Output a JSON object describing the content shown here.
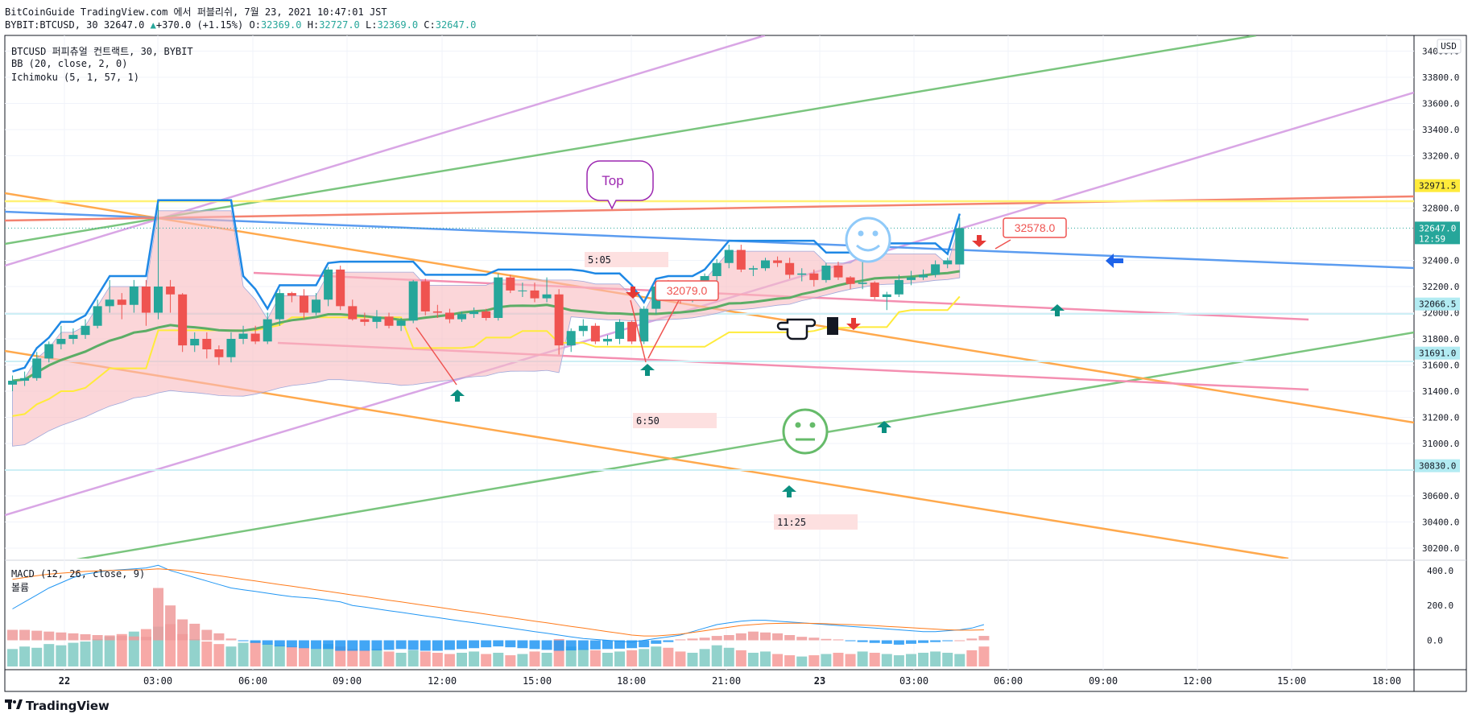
{
  "header": {
    "publish_line": "BitCoinGuide TradingView.com 에서 퍼블리쉬, 7월 23, 2021 10:47:01 JST",
    "symbol_line": {
      "symbol": "BYBIT:BTCUSD, 30",
      "last": "32647.0",
      "change": "+370.0 (+1.15%)",
      "o_label": "O:",
      "o": "32369.0",
      "h_label": "H:",
      "h": "32727.0",
      "l_label": "L:",
      "l": "32369.0",
      "c_label": "C:",
      "c": "32647.0"
    }
  },
  "legend": {
    "title": "BTCUSD 퍼피츄얼 컨트랙트, 30, BYBIT",
    "bb": "BB (20, close, 2, 0)",
    "ichimoku": "Ichimoku (5, 1, 57, 1)",
    "macd": "MACD (12, 26, close, 9)",
    "volume": "볼륨"
  },
  "colors": {
    "up": "#26a69a",
    "down": "#ef5350",
    "bb_basis": "#5cad66",
    "bb_band": "#1e88e5",
    "kijun": "#ffeb3b",
    "cloud": "#f8bbbf",
    "macd": "#2196f3",
    "signal": "#ff7a1a"
  },
  "footer": {
    "brand": "TradingView",
    "logo_icon": "tradingview-logo-icon"
  },
  "chart_data": [
    {
      "type": "candlestick",
      "currency": "USD",
      "price_axis_ticks": [
        34000,
        33800,
        33600,
        33400,
        33200,
        32800,
        32400,
        32200,
        32000,
        31800,
        31600,
        31400,
        31200,
        31000,
        30600,
        30400,
        30200
      ],
      "price_axis_labels": [
        "34000.0",
        "33800.0",
        "33600.0",
        "33400.0",
        "33200.0",
        "32800.0",
        "32400.0",
        "32200.0",
        "32000.0",
        "31800.0",
        "31600.0",
        "31400.0",
        "31200.0",
        "31000.0",
        "30600.0",
        "30400.0",
        "30200.0"
      ],
      "time_axis_labels": [
        "22",
        "03:00",
        "06:00",
        "09:00",
        "12:00",
        "15:00",
        "18:00",
        "21:00",
        "23",
        "03:00",
        "06:00",
        "09:00",
        "12:00",
        "15:00",
        "18:00"
      ],
      "ylim": [
        30120,
        34120
      ],
      "price_markers": [
        {
          "value": 32971.5,
          "label": "32971.5",
          "color": "#ffeb3b",
          "text_color": "#131722"
        },
        {
          "value": 32647.0,
          "label": "32647.0",
          "sub": "12:59",
          "color": "#26a69a",
          "text_color": "#ffffff"
        },
        {
          "value": 32066.5,
          "label": "32066.5",
          "color": "#b2ebf2",
          "text_color": "#131722"
        },
        {
          "value": 31691.0,
          "label": "31691.0",
          "color": "#b2ebf2",
          "text_color": "#131722"
        },
        {
          "value": 30830.0,
          "label": "30830.0",
          "color": "#b2ebf2",
          "text_color": "#131722"
        }
      ],
      "candles": [
        [
          31450,
          31520,
          31400,
          31480
        ],
        [
          31480,
          31550,
          31440,
          31500
        ],
        [
          31500,
          31700,
          31480,
          31650
        ],
        [
          31650,
          31780,
          31620,
          31760
        ],
        [
          31760,
          31900,
          31720,
          31800
        ],
        [
          31800,
          31880,
          31760,
          31830
        ],
        [
          31830,
          31950,
          31800,
          31900
        ],
        [
          31900,
          32100,
          31880,
          32050
        ],
        [
          32050,
          32250,
          32000,
          32100
        ],
        [
          32100,
          32150,
          31950,
          32060
        ],
        [
          32060,
          32250,
          32000,
          32200
        ],
        [
          32200,
          32250,
          31900,
          32000
        ],
        [
          32000,
          32830,
          31950,
          32200
        ],
        [
          32200,
          32250,
          32000,
          32140
        ],
        [
          32140,
          32150,
          31700,
          31750
        ],
        [
          31750,
          31850,
          31700,
          31800
        ],
        [
          31800,
          31850,
          31650,
          31720
        ],
        [
          31720,
          31750,
          31600,
          31660
        ],
        [
          31660,
          31850,
          31620,
          31800
        ],
        [
          31800,
          31900,
          31760,
          31840
        ],
        [
          31840,
          31900,
          31760,
          31780
        ],
        [
          31780,
          32000,
          31760,
          31950
        ],
        [
          31950,
          32180,
          31900,
          32150
        ],
        [
          32150,
          32160,
          32080,
          32130
        ],
        [
          32130,
          32180,
          31950,
          32000
        ],
        [
          32000,
          32150,
          31980,
          32100
        ],
        [
          32100,
          32350,
          32050,
          32330
        ],
        [
          32330,
          32360,
          32020,
          32050
        ],
        [
          32050,
          32100,
          31940,
          31950
        ],
        [
          31950,
          32000,
          31900,
          31930
        ],
        [
          31930,
          32020,
          31880,
          31970
        ],
        [
          31970,
          32000,
          31880,
          31900
        ],
        [
          31900,
          31960,
          31860,
          31940
        ],
        [
          31940,
          32250,
          31920,
          32240
        ],
        [
          32240,
          32260,
          31980,
          32010
        ],
        [
          32010,
          32060,
          31960,
          32000
        ],
        [
          32000,
          32030,
          31920,
          31950
        ],
        [
          31950,
          32010,
          31930,
          31990
        ],
        [
          31990,
          32040,
          31960,
          32010
        ],
        [
          32010,
          32030,
          31940,
          31960
        ],
        [
          31960,
          32300,
          31940,
          32270
        ],
        [
          32270,
          32290,
          32150,
          32170
        ],
        [
          32170,
          32230,
          32120,
          32170
        ],
        [
          32170,
          32230,
          32080,
          32110
        ],
        [
          32110,
          32270,
          32080,
          32140
        ],
        [
          32140,
          32180,
          31680,
          31750
        ],
        [
          31750,
          31880,
          31700,
          31860
        ],
        [
          31860,
          31950,
          31820,
          31900
        ],
        [
          31900,
          31920,
          31760,
          31780
        ],
        [
          31780,
          31830,
          31750,
          31800
        ],
        [
          31800,
          31950,
          31760,
          31930
        ],
        [
          31930,
          31940,
          31760,
          31780
        ],
        [
          31780,
          32050,
          31760,
          32030
        ],
        [
          32030,
          32230,
          31990,
          32200
        ],
        [
          32200,
          32250,
          32130,
          32150
        ],
        [
          32150,
          32180,
          32070,
          32100
        ],
        [
          32100,
          32160,
          32080,
          32130
        ],
        [
          32130,
          32300,
          32100,
          32280
        ],
        [
          32280,
          32410,
          32240,
          32380
        ],
        [
          32380,
          32520,
          32340,
          32480
        ],
        [
          32480,
          32520,
          32310,
          32330
        ],
        [
          32330,
          32360,
          32280,
          32340
        ],
        [
          32340,
          32420,
          32320,
          32400
        ],
        [
          32400,
          32430,
          32350,
          32380
        ],
        [
          32380,
          32420,
          32260,
          32290
        ],
        [
          32290,
          32340,
          32240,
          32300
        ],
        [
          32300,
          32330,
          32200,
          32250
        ],
        [
          32250,
          32380,
          32230,
          32360
        ],
        [
          32360,
          32390,
          32250,
          32270
        ],
        [
          32270,
          32280,
          32180,
          32220
        ],
        [
          32220,
          32500,
          32180,
          32230
        ],
        [
          32230,
          32240,
          32100,
          32120
        ],
        [
          32120,
          32160,
          32020,
          32140
        ],
        [
          32140,
          32290,
          32120,
          32250
        ],
        [
          32250,
          32320,
          32210,
          32270
        ],
        [
          32270,
          32330,
          32250,
          32290
        ],
        [
          32290,
          32400,
          32270,
          32370
        ],
        [
          32370,
          32420,
          32340,
          32400
        ],
        [
          32369,
          32727,
          32369,
          32647
        ]
      ],
      "annotations": [
        {
          "type": "callout",
          "text": "Top"
        },
        {
          "type": "price_label",
          "text": "32079.0"
        },
        {
          "type": "price_label",
          "text": "32578.0"
        },
        {
          "type": "time_label",
          "text": "5:05"
        },
        {
          "type": "time_label",
          "text": "6:50"
        },
        {
          "type": "time_label",
          "text": "11:25"
        }
      ]
    },
    {
      "type": "macd",
      "title": "MACD (12, 26, close, 9)",
      "axis_labels": [
        "400.0",
        "200.0",
        "0.0"
      ],
      "axis_ticks": [
        400,
        200,
        0
      ],
      "ylim": [
        -150,
        450
      ],
      "histogram": [
        60,
        60,
        55,
        50,
        45,
        40,
        35,
        30,
        28,
        25,
        22,
        20,
        300,
        200,
        120,
        95,
        60,
        40,
        10,
        -5,
        -15,
        -25,
        -35,
        -40,
        -45,
        -50,
        -50,
        -60,
        -60,
        -60,
        -58,
        -55,
        -50,
        -55,
        -60,
        -60,
        -55,
        -50,
        -45,
        -40,
        -35,
        -40,
        -45,
        -50,
        -55,
        -60,
        -58,
        -55,
        -52,
        -50,
        -48,
        -45,
        -40,
        -20,
        -10,
        5,
        10,
        15,
        25,
        30,
        40,
        50,
        45,
        40,
        30,
        20,
        15,
        8,
        5,
        -5,
        -10,
        -15,
        -20,
        -25,
        -20,
        -15,
        -10,
        -5,
        0,
        10,
        25
      ],
      "macd_line": [
        180,
        220,
        260,
        300,
        330,
        360,
        380,
        390,
        400,
        405,
        410,
        415,
        430,
        400,
        380,
        360,
        340,
        320,
        300,
        290,
        280,
        270,
        260,
        250,
        245,
        240,
        230,
        220,
        200,
        190,
        180,
        170,
        160,
        150,
        140,
        130,
        120,
        110,
        100,
        90,
        80,
        70,
        60,
        50,
        40,
        30,
        20,
        10,
        5,
        0,
        -5,
        -10,
        0,
        10,
        20,
        30,
        50,
        70,
        90,
        100,
        110,
        115,
        115,
        110,
        105,
        100,
        95,
        90,
        85,
        80,
        75,
        70,
        65,
        60,
        55,
        50,
        50,
        55,
        60,
        70,
        90
      ],
      "signal_line": [
        350,
        360,
        370,
        380,
        385,
        390,
        395,
        398,
        400,
        402,
        404,
        405,
        410,
        405,
        400,
        390,
        380,
        370,
        360,
        350,
        340,
        330,
        320,
        310,
        300,
        290,
        280,
        270,
        260,
        250,
        240,
        230,
        220,
        210,
        200,
        190,
        180,
        170,
        160,
        150,
        140,
        130,
        120,
        110,
        100,
        90,
        80,
        70,
        60,
        50,
        40,
        30,
        25,
        25,
        30,
        35,
        45,
        55,
        65,
        75,
        85,
        90,
        95,
        97,
        98,
        98,
        97,
        95,
        92,
        90,
        87,
        84,
        80,
        76,
        72,
        68,
        64,
        60,
        58,
        58,
        60
      ]
    },
    {
      "type": "bar",
      "title": "볼륨",
      "values": [
        70,
        80,
        75,
        90,
        85,
        95,
        100,
        110,
        120,
        130,
        140,
        150,
        160,
        170,
        130,
        110,
        100,
        90,
        80,
        95,
        100,
        90,
        85,
        80,
        75,
        70,
        90,
        80,
        70,
        65,
        70,
        60,
        55,
        65,
        60,
        55,
        50,
        55,
        60,
        50,
        55,
        45,
        50,
        60,
        55,
        110,
        80,
        70,
        65,
        55,
        60,
        65,
        70,
        80,
        75,
        60,
        55,
        70,
        85,
        75,
        65,
        55,
        60,
        50,
        45,
        40,
        45,
        50,
        55,
        50,
        60,
        55,
        50,
        45,
        50,
        55,
        60,
        55,
        50,
        65,
        80
      ]
    }
  ]
}
